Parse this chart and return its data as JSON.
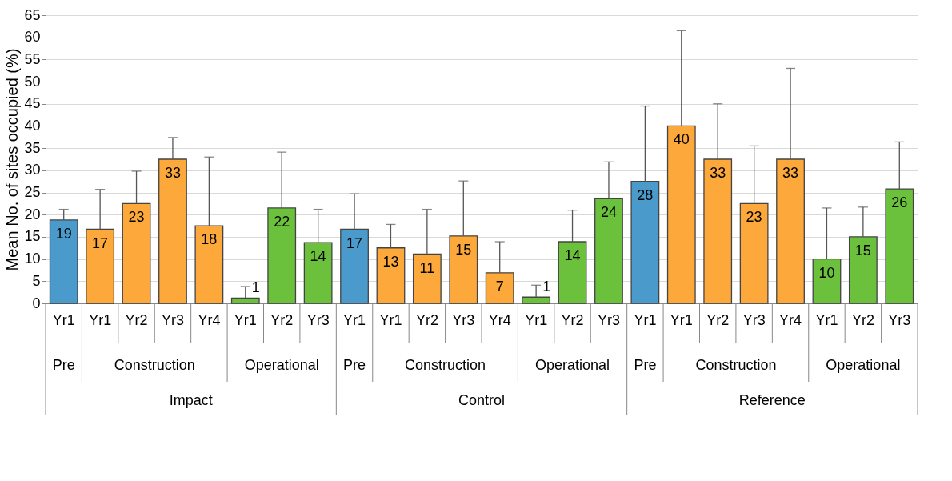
{
  "chart_data": {
    "type": "bar",
    "ylabel": "Mean No. of sites occupied (%)",
    "categories": [
      "Yr1",
      "Yr1",
      "Yr2",
      "Yr3",
      "Yr4",
      "Yr1",
      "Yr2",
      "Yr3",
      "Yr1",
      "Yr1",
      "Yr2",
      "Yr3",
      "Yr4",
      "Yr1",
      "Yr2",
      "Yr3",
      "Yr1",
      "Yr1",
      "Yr2",
      "Yr3",
      "Yr4",
      "Yr1",
      "Yr2",
      "Yr3"
    ],
    "values": [
      18.8,
      16.7,
      22.5,
      32.5,
      17.5,
      1.2,
      21.5,
      13.7,
      16.7,
      12.5,
      11.1,
      15.2,
      6.9,
      1.4,
      13.9,
      23.6,
      27.5,
      40,
      32.5,
      22.5,
      32.5,
      10,
      15,
      25.8
    ],
    "value_labels": [
      "19",
      "17",
      "23",
      "33",
      "18",
      "1",
      "22",
      "14",
      "17",
      "13",
      "11",
      "15",
      "7",
      "1",
      "14",
      "24",
      "28",
      "40",
      "33",
      "23",
      "33",
      "10",
      "15",
      "26"
    ],
    "errors": [
      [
        18.8,
        21.2
      ],
      [
        16.7,
        25.7
      ],
      [
        22.5,
        29.8
      ],
      [
        32.5,
        37.4
      ],
      [
        17.5,
        33
      ],
      [
        1.2,
        3.8
      ],
      [
        21.5,
        34.1
      ],
      [
        13.7,
        21.2
      ],
      [
        16.7,
        24.7
      ],
      [
        12.5,
        17.8
      ],
      [
        11.1,
        21.2
      ],
      [
        15.2,
        27.6
      ],
      [
        6.9,
        13.9
      ],
      [
        1.4,
        4.1
      ],
      [
        13.9,
        21
      ],
      [
        23.6,
        31.9
      ],
      [
        27.5,
        44.5
      ],
      [
        40,
        61.5
      ],
      [
        32.5,
        45
      ],
      [
        22.5,
        35.5
      ],
      [
        32.5,
        53
      ],
      [
        10,
        21.5
      ],
      [
        15,
        21.7
      ],
      [
        25.8,
        36.4
      ]
    ],
    "colors": [
      "#4a9bcb",
      "#fda83b",
      "#fda83b",
      "#fda83b",
      "#fda83b",
      "#6cc13c",
      "#6cc13c",
      "#6cc13c",
      "#4a9bcb",
      "#fda83b",
      "#fda83b",
      "#fda83b",
      "#fda83b",
      "#6cc13c",
      "#6cc13c",
      "#6cc13c",
      "#4a9bcb",
      "#fda83b",
      "#fda83b",
      "#fda83b",
      "#fda83b",
      "#6cc13c",
      "#6cc13c",
      "#6cc13c"
    ],
    "ylim": [
      0,
      65
    ],
    "yticks": [
      0,
      5,
      10,
      15,
      20,
      25,
      30,
      35,
      40,
      45,
      50,
      55,
      60,
      65
    ],
    "grid": "y",
    "annotations": [
      "Pre",
      "Construction",
      "Operational",
      "Pre",
      "Construction",
      "Operational",
      "Pre",
      "Construction",
      "Operational",
      "Impact",
      "Control",
      "Reference"
    ]
  }
}
